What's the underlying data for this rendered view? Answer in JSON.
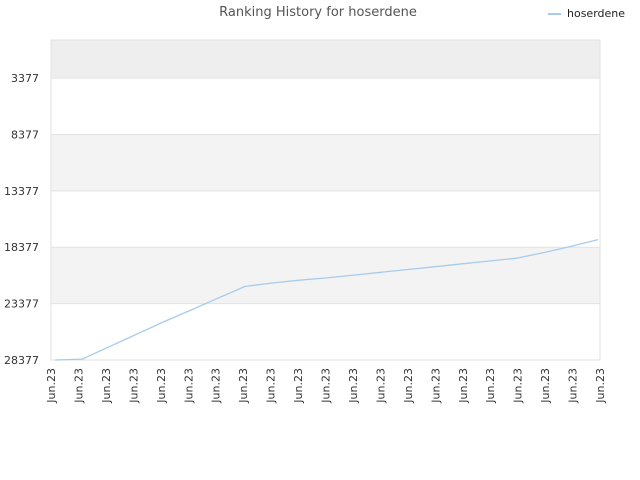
{
  "chart_data": {
    "type": "line",
    "title": "Ranking History for hoserdene",
    "xlabel": "",
    "ylabel": "",
    "y_inverted": true,
    "ylim": [
      28377,
      0
    ],
    "yticks": [
      3377,
      8377,
      13377,
      18377,
      23377,
      28377
    ],
    "grid": true,
    "legend_position": "top-right",
    "categories": [
      "Jun.23",
      "Jun.23",
      "Jun.23",
      "Jun.23",
      "Jun.23",
      "Jun.23",
      "Jun.23",
      "Jun.23",
      "Jun.23",
      "Jun.23",
      "Jun.23",
      "Jun.23",
      "Jun.23",
      "Jun.23",
      "Jun.23",
      "Jun.23",
      "Jun.23",
      "Jun.23",
      "Jun.23",
      "Jun.23",
      "Jun.23"
    ],
    "series": [
      {
        "name": "hoserdene",
        "color": "#a7cbec",
        "values": [
          28377,
          28300,
          27200,
          26100,
          25000,
          23950,
          22900,
          21850,
          21550,
          21300,
          21100,
          20850,
          20600,
          20350,
          20100,
          19850,
          19600,
          19350,
          18850,
          18300,
          17700
        ]
      }
    ]
  },
  "colors": {
    "band_dark": "#eeeeee",
    "band_light": "#f3f3f3",
    "band_white": "#ffffff",
    "grid": "#e2e2e2",
    "line": "#a7cbec"
  }
}
